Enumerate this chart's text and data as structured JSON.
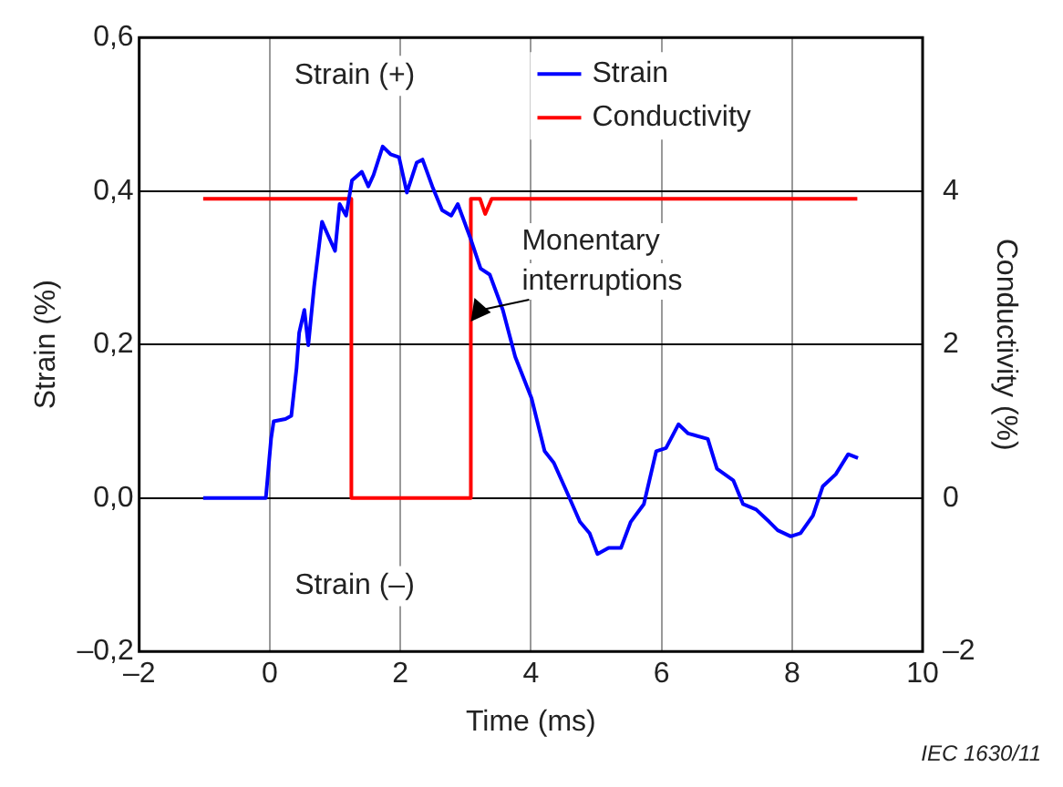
{
  "chart_data": {
    "type": "line",
    "xlabel": "Time (ms)",
    "ylabel": "Strain (%)",
    "y2label": "Conductivity (%)",
    "xlim": [
      -2,
      10
    ],
    "xticks": [
      {
        "value": -2,
        "label": "–2"
      },
      0,
      2,
      4,
      6,
      8,
      10
    ],
    "ylim": [
      -0.2,
      0.6
    ],
    "yticks": [
      {
        "value": -0.2,
        "label": "–0,2"
      },
      {
        "value": 0,
        "label": "0,0"
      },
      {
        "value": 0.2,
        "label": "0,2"
      },
      {
        "value": 0.4,
        "label": "0,4"
      },
      {
        "value": 0.6,
        "label": "0,6"
      }
    ],
    "y2lim": [
      -2,
      6
    ],
    "y2ticks": [
      {
        "value": -2,
        "label": "–2"
      },
      0,
      2,
      4
    ],
    "grid": true,
    "legend": "top right",
    "marker": "none",
    "line_style": "solid",
    "series": [
      {
        "name": "Strain",
        "color": "#0000ff",
        "x": [
          -1.02,
          -0.06,
          0.02,
          0.06,
          0.24,
          0.33,
          0.41,
          0.45,
          0.53,
          0.59,
          0.68,
          0.8,
          0.92,
          1.0,
          1.07,
          1.17,
          1.26,
          1.41,
          1.51,
          1.59,
          1.73,
          1.85,
          1.98,
          2.1,
          2.25,
          2.34,
          2.49,
          2.64,
          2.78,
          2.88,
          3.08,
          3.23,
          3.37,
          3.57,
          3.76,
          4.01,
          4.21,
          4.35,
          4.55,
          4.75,
          4.9,
          5.02,
          5.19,
          5.38,
          5.53,
          5.73,
          5.92,
          6.07,
          6.26,
          6.41,
          6.71,
          6.85,
          7.1,
          7.25,
          7.45,
          7.65,
          7.78,
          7.98,
          8.13,
          8.32,
          8.47,
          8.67,
          8.86,
          9.01
        ],
        "values": [
          0,
          0,
          0.077,
          0.1,
          0.103,
          0.107,
          0.169,
          0.215,
          0.245,
          0.199,
          0.276,
          0.36,
          0.337,
          0.322,
          0.383,
          0.368,
          0.414,
          0.425,
          0.406,
          0.421,
          0.458,
          0.448,
          0.444,
          0.398,
          0.437,
          0.441,
          0.406,
          0.375,
          0.368,
          0.383,
          0.337,
          0.299,
          0.291,
          0.245,
          0.184,
          0.13,
          0.061,
          0.046,
          0.008,
          -0.031,
          -0.046,
          -0.073,
          -0.065,
          -0.065,
          -0.031,
          -0.008,
          0.061,
          0.065,
          0.096,
          0.084,
          0.077,
          0.038,
          0.023,
          -0.008,
          -0.015,
          -0.031,
          -0.042,
          -0.05,
          -0.046,
          -0.023,
          0.015,
          0.031,
          0.057,
          0.052
        ]
      },
      {
        "name": "Conductivity",
        "color": "#ff0000",
        "axis": "y2",
        "x": [
          -1.02,
          1.25,
          1.25,
          3.08,
          3.08,
          3.22,
          3.3,
          3.4,
          9.0
        ],
        "values": [
          3.9,
          3.9,
          0,
          0,
          3.9,
          3.9,
          3.7,
          3.9,
          3.9
        ]
      }
    ],
    "annotations": [
      "Strain (+)",
      "Strain (–)",
      {
        "text": "Monentary interruptions",
        "x": 3.08,
        "y": 0.23
      },
      "IEC 1630/11"
    ]
  }
}
